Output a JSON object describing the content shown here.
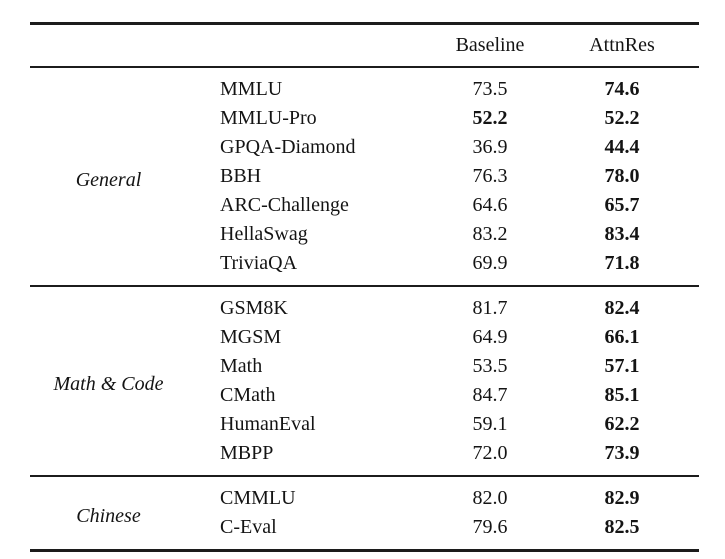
{
  "table": {
    "header": {
      "baseline": "Baseline",
      "attnres": "AttnRes"
    },
    "groups": [
      {
        "label": "General",
        "rows": [
          {
            "benchmark": "MMLU",
            "baseline": "73.5",
            "baseline_bold": false,
            "attnres": "74.6",
            "attnres_bold": true
          },
          {
            "benchmark": "MMLU-Pro",
            "baseline": "52.2",
            "baseline_bold": true,
            "attnres": "52.2",
            "attnres_bold": true
          },
          {
            "benchmark": "GPQA-Diamond",
            "baseline": "36.9",
            "baseline_bold": false,
            "attnres": "44.4",
            "attnres_bold": true
          },
          {
            "benchmark": "BBH",
            "baseline": "76.3",
            "baseline_bold": false,
            "attnres": "78.0",
            "attnres_bold": true
          },
          {
            "benchmark": "ARC-Challenge",
            "baseline": "64.6",
            "baseline_bold": false,
            "attnres": "65.7",
            "attnres_bold": true
          },
          {
            "benchmark": "HellaSwag",
            "baseline": "83.2",
            "baseline_bold": false,
            "attnres": "83.4",
            "attnres_bold": true
          },
          {
            "benchmark": "TriviaQA",
            "baseline": "69.9",
            "baseline_bold": false,
            "attnres": "71.8",
            "attnres_bold": true
          }
        ]
      },
      {
        "label": "Math & Code",
        "rows": [
          {
            "benchmark": "GSM8K",
            "baseline": "81.7",
            "baseline_bold": false,
            "attnres": "82.4",
            "attnres_bold": true
          },
          {
            "benchmark": "MGSM",
            "baseline": "64.9",
            "baseline_bold": false,
            "attnres": "66.1",
            "attnres_bold": true
          },
          {
            "benchmark": "Math",
            "baseline": "53.5",
            "baseline_bold": false,
            "attnres": "57.1",
            "attnres_bold": true
          },
          {
            "benchmark": "CMath",
            "baseline": "84.7",
            "baseline_bold": false,
            "attnres": "85.1",
            "attnres_bold": true
          },
          {
            "benchmark": "HumanEval",
            "baseline": "59.1",
            "baseline_bold": false,
            "attnres": "62.2",
            "attnres_bold": true
          },
          {
            "benchmark": "MBPP",
            "baseline": "72.0",
            "baseline_bold": false,
            "attnres": "73.9",
            "attnres_bold": true
          }
        ]
      },
      {
        "label": "Chinese",
        "rows": [
          {
            "benchmark": "CMMLU",
            "baseline": "82.0",
            "baseline_bold": false,
            "attnres": "82.9",
            "attnres_bold": true
          },
          {
            "benchmark": "C-Eval",
            "baseline": "79.6",
            "baseline_bold": false,
            "attnres": "82.5",
            "attnres_bold": true
          }
        ]
      }
    ]
  }
}
